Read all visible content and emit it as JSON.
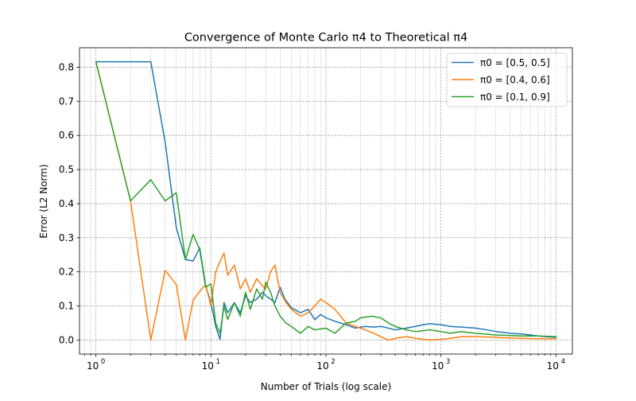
{
  "chart_data": {
    "type": "line",
    "title": "Convergence of Monte Carlo π4 to Theoretical π4",
    "xlabel": "Number of Trials (log scale)",
    "ylabel": "Error (L2 Norm)",
    "xscale": "log",
    "xlim": [
      0.72,
      13900
    ],
    "ylim": [
      -0.041,
      0.857
    ],
    "grid": "major and minor, dashed",
    "legend_position": "top-right",
    "x_ticks": [
      {
        "value": 1,
        "base": "10",
        "exp": "0"
      },
      {
        "value": 10,
        "base": "10",
        "exp": "1"
      },
      {
        "value": 100,
        "base": "10",
        "exp": "2"
      },
      {
        "value": 1000,
        "base": "10",
        "exp": "3"
      },
      {
        "value": 10000,
        "base": "10",
        "exp": "4"
      }
    ],
    "y_ticks": [
      "0.0",
      "0.1",
      "0.2",
      "0.3",
      "0.4",
      "0.5",
      "0.6",
      "0.7",
      "0.8"
    ],
    "series": [
      {
        "name": "π0 = [0.5, 0.5]",
        "color": "#1f77b4",
        "points": [
          [
            1,
            0.816
          ],
          [
            2,
            0.816
          ],
          [
            3,
            0.816
          ],
          [
            4,
            0.58
          ],
          [
            5,
            0.33
          ],
          [
            6,
            0.236
          ],
          [
            7,
            0.232
          ],
          [
            8,
            0.27
          ],
          [
            9,
            0.16
          ],
          [
            10,
            0.11
          ],
          [
            11,
            0.04
          ],
          [
            12,
            0.002
          ],
          [
            13,
            0.11
          ],
          [
            14,
            0.08
          ],
          [
            16,
            0.11
          ],
          [
            18,
            0.08
          ],
          [
            20,
            0.13
          ],
          [
            22,
            0.11
          ],
          [
            25,
            0.12
          ],
          [
            28,
            0.14
          ],
          [
            30,
            0.13
          ],
          [
            33,
            0.12
          ],
          [
            36,
            0.11
          ],
          [
            40,
            0.155
          ],
          [
            44,
            0.12
          ],
          [
            50,
            0.095
          ],
          [
            60,
            0.08
          ],
          [
            70,
            0.09
          ],
          [
            80,
            0.06
          ],
          [
            90,
            0.075
          ],
          [
            100,
            0.065
          ],
          [
            120,
            0.055
          ],
          [
            150,
            0.045
          ],
          [
            180,
            0.035
          ],
          [
            220,
            0.04
          ],
          [
            260,
            0.038
          ],
          [
            300,
            0.04
          ],
          [
            350,
            0.035
          ],
          [
            400,
            0.03
          ],
          [
            500,
            0.035
          ],
          [
            600,
            0.04
          ],
          [
            700,
            0.045
          ],
          [
            800,
            0.048
          ],
          [
            1000,
            0.045
          ],
          [
            1200,
            0.04
          ],
          [
            1500,
            0.038
          ],
          [
            2000,
            0.035
          ],
          [
            2500,
            0.03
          ],
          [
            3000,
            0.025
          ],
          [
            4000,
            0.02
          ],
          [
            5000,
            0.018
          ],
          [
            6000,
            0.015
          ],
          [
            7000,
            0.012
          ],
          [
            8000,
            0.01
          ],
          [
            10000,
            0.008
          ]
        ]
      },
      {
        "name": "π0 = [0.4, 0.6]",
        "color": "#ff7f0e",
        "points": [
          [
            1,
            0.816
          ],
          [
            2,
            0.408
          ],
          [
            3,
            0.0
          ],
          [
            4,
            0.204
          ],
          [
            5,
            0.163
          ],
          [
            6,
            0.0
          ],
          [
            7,
            0.117
          ],
          [
            8,
            0.143
          ],
          [
            9,
            0.163
          ],
          [
            10,
            0.1
          ],
          [
            11,
            0.2
          ],
          [
            12,
            0.23
          ],
          [
            13,
            0.255
          ],
          [
            14,
            0.19
          ],
          [
            16,
            0.22
          ],
          [
            18,
            0.15
          ],
          [
            20,
            0.18
          ],
          [
            22,
            0.14
          ],
          [
            25,
            0.18
          ],
          [
            28,
            0.16
          ],
          [
            30,
            0.15
          ],
          [
            33,
            0.2
          ],
          [
            36,
            0.22
          ],
          [
            40,
            0.14
          ],
          [
            45,
            0.11
          ],
          [
            50,
            0.09
          ],
          [
            60,
            0.07
          ],
          [
            70,
            0.08
          ],
          [
            80,
            0.1
          ],
          [
            90,
            0.12
          ],
          [
            100,
            0.11
          ],
          [
            120,
            0.09
          ],
          [
            150,
            0.05
          ],
          [
            180,
            0.04
          ],
          [
            220,
            0.03
          ],
          [
            260,
            0.02
          ],
          [
            300,
            0.01
          ],
          [
            350,
            0.0
          ],
          [
            400,
            0.005
          ],
          [
            500,
            0.01
          ],
          [
            600,
            0.005
          ],
          [
            800,
            0.0
          ],
          [
            1000,
            0.002
          ],
          [
            1200,
            0.005
          ],
          [
            1500,
            0.01
          ],
          [
            2000,
            0.01
          ],
          [
            3000,
            0.008
          ],
          [
            4000,
            0.006
          ],
          [
            5000,
            0.005
          ],
          [
            7000,
            0.004
          ],
          [
            10000,
            0.004
          ]
        ]
      },
      {
        "name": "π0 = [0.1, 0.9]",
        "color": "#2ca02c",
        "points": [
          [
            1,
            0.816
          ],
          [
            2,
            0.408
          ],
          [
            3,
            0.47
          ],
          [
            4,
            0.408
          ],
          [
            5,
            0.432
          ],
          [
            6,
            0.236
          ],
          [
            7,
            0.31
          ],
          [
            8,
            0.265
          ],
          [
            9,
            0.155
          ],
          [
            10,
            0.165
          ],
          [
            11,
            0.05
          ],
          [
            12,
            0.02
          ],
          [
            13,
            0.1
          ],
          [
            14,
            0.06
          ],
          [
            16,
            0.11
          ],
          [
            18,
            0.07
          ],
          [
            20,
            0.14
          ],
          [
            22,
            0.09
          ],
          [
            25,
            0.15
          ],
          [
            28,
            0.12
          ],
          [
            30,
            0.17
          ],
          [
            33,
            0.14
          ],
          [
            36,
            0.1
          ],
          [
            40,
            0.07
          ],
          [
            45,
            0.05
          ],
          [
            50,
            0.04
          ],
          [
            60,
            0.02
          ],
          [
            70,
            0.04
          ],
          [
            80,
            0.03
          ],
          [
            100,
            0.035
          ],
          [
            120,
            0.02
          ],
          [
            150,
            0.05
          ],
          [
            180,
            0.055
          ],
          [
            200,
            0.065
          ],
          [
            250,
            0.07
          ],
          [
            300,
            0.065
          ],
          [
            350,
            0.05
          ],
          [
            400,
            0.04
          ],
          [
            500,
            0.03
          ],
          [
            600,
            0.025
          ],
          [
            800,
            0.03
          ],
          [
            1000,
            0.025
          ],
          [
            1200,
            0.02
          ],
          [
            1500,
            0.025
          ],
          [
            2000,
            0.02
          ],
          [
            3000,
            0.015
          ],
          [
            5000,
            0.012
          ],
          [
            7000,
            0.012
          ],
          [
            10000,
            0.01
          ]
        ]
      }
    ]
  }
}
